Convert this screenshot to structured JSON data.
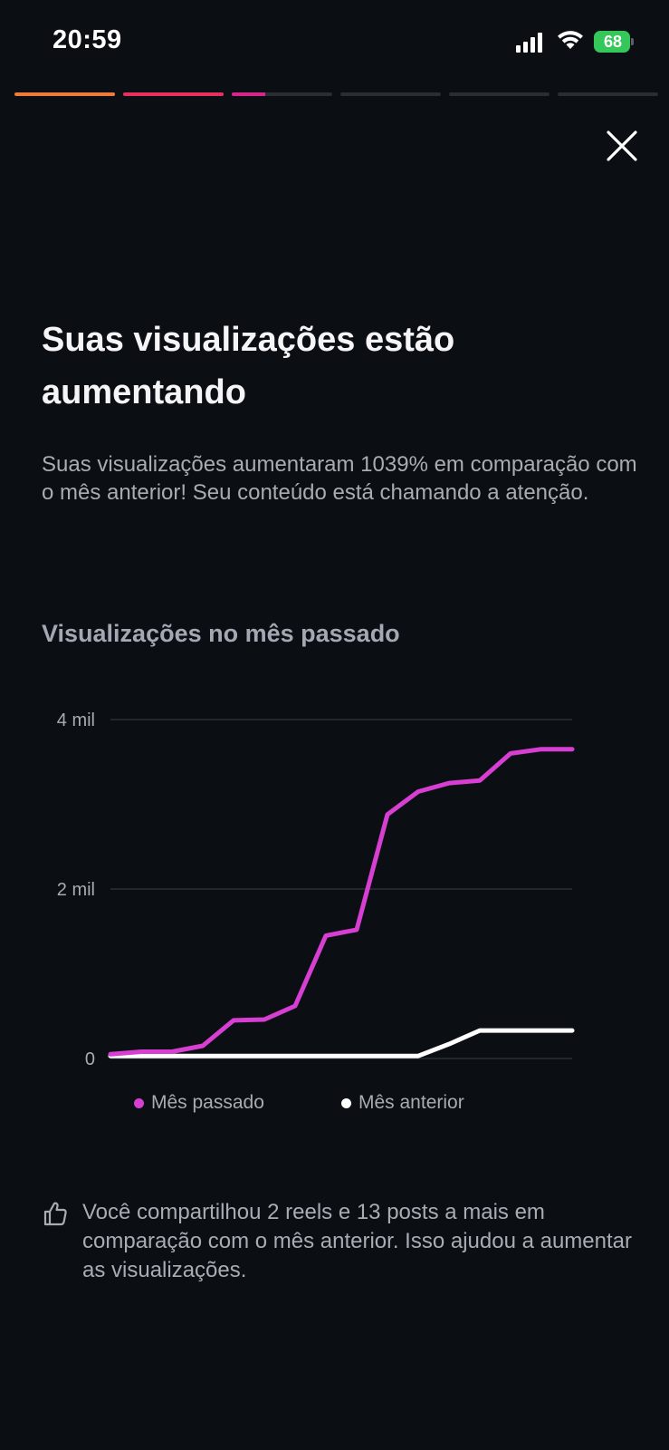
{
  "status_bar": {
    "time": "20:59",
    "battery": "68",
    "icons": [
      "cellular-signal-icon",
      "wifi-icon",
      "battery-charging-icon"
    ]
  },
  "story_progress": {
    "segments": [
      {
        "fill": 1.0,
        "color": "#f07a3a"
      },
      {
        "fill": 1.0,
        "color": "#e8305f"
      },
      {
        "fill": 0.33,
        "color": "#d9248a"
      },
      {
        "fill": 0,
        "color": "#2a2d33"
      },
      {
        "fill": 0,
        "color": "#2a2d33"
      },
      {
        "fill": 0,
        "color": "#2a2d33"
      }
    ]
  },
  "header": {
    "close_icon": "close-icon"
  },
  "main": {
    "title": "Suas visualizações estão aumentando",
    "subtitle": "Suas visualizações aumentaram 1039% em comparação com o mês anterior! Seu conteúdo está chamando a atenção.",
    "chart_title": "Visualizações no mês passado"
  },
  "chart_data": {
    "type": "line",
    "title": "Visualizações no mês passado",
    "x": [
      1,
      2,
      3,
      4,
      5,
      6,
      7,
      8,
      9,
      10,
      11,
      12,
      13,
      14,
      15,
      16
    ],
    "ylim": [
      0,
      4000
    ],
    "yticks": [
      {
        "value": 0,
        "label": "0"
      },
      {
        "value": 2000,
        "label": "2 mil"
      },
      {
        "value": 4000,
        "label": "4 mil"
      }
    ],
    "grid": true,
    "legend_position": "bottom",
    "series": [
      {
        "name": "Mês passado",
        "color": "#d63fd2",
        "values": [
          50,
          80,
          80,
          150,
          450,
          460,
          620,
          1450,
          1520,
          2880,
          3150,
          3250,
          3280,
          3600,
          3650,
          3650
        ]
      },
      {
        "name": "Mês anterior",
        "color": "#ffffff",
        "values": [
          30,
          30,
          30,
          30,
          30,
          30,
          30,
          30,
          30,
          30,
          30,
          170,
          330,
          330,
          330,
          330
        ]
      }
    ]
  },
  "footer": {
    "icon": "thumbs-up-icon",
    "text": "Você compartilhou 2 reels e 13 posts a mais em comparação com o mês anterior. Isso ajudou a aumentar as visualizações."
  }
}
